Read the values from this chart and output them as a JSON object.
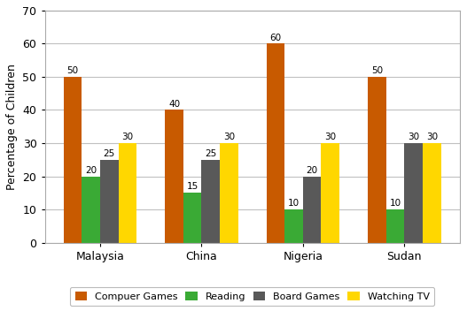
{
  "countries": [
    "Malaysia",
    "China",
    "Nigeria",
    "Sudan"
  ],
  "activities": [
    "Compuer Games",
    "Reading",
    "Board Games",
    "Watching TV"
  ],
  "values": {
    "Compuer Games": [
      50,
      40,
      60,
      50
    ],
    "Reading": [
      20,
      15,
      10,
      10
    ],
    "Board Games": [
      25,
      25,
      20,
      30
    ],
    "Watching TV": [
      30,
      30,
      30,
      30
    ]
  },
  "colors": {
    "Compuer Games": "#C85A00",
    "Reading": "#3AAA35",
    "Board Games": "#595959",
    "Watching TV": "#FFD700"
  },
  "ylabel": "Percentage of Children",
  "ylim": [
    0,
    70
  ],
  "yticks": [
    0,
    10,
    20,
    30,
    40,
    50,
    60,
    70
  ],
  "bar_width": 0.18,
  "label_fontsize": 7.5,
  "axis_label_fontsize": 9,
  "tick_fontsize": 9,
  "legend_fontsize": 8,
  "background_color": "#ffffff",
  "grid_color": "#c0c0c0"
}
